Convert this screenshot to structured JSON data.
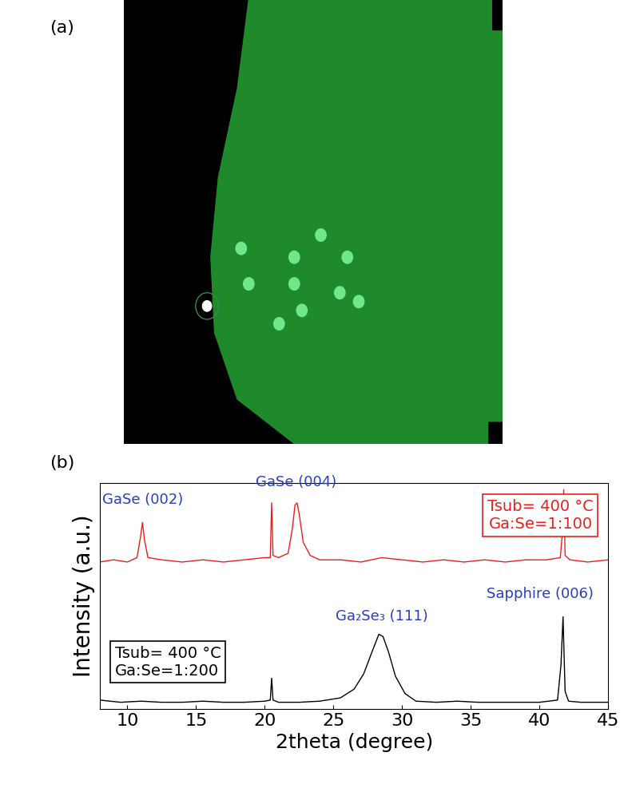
{
  "panel_labels": [
    "(a)",
    "(b)"
  ],
  "chart_data": {
    "type": "line",
    "x_label": "2theta (degree)",
    "y_label": "Intensity (a.u.)",
    "xlim": [
      8,
      45
    ],
    "xticks": [
      10,
      15,
      20,
      25,
      30,
      35,
      40,
      45
    ],
    "ylim": [
      0,
      10.3
    ],
    "yticks": [],
    "tick_labels": "x",
    "series": [
      {
        "name": "Tsub= 400 °C\nGa:Se=1:100",
        "color": "#e8201c",
        "x": [
          8,
          9,
          10,
          10.7,
          10.95,
          11.1,
          11.25,
          11.5,
          12.5,
          14,
          15.5,
          17,
          18.5,
          20,
          20.4,
          20.5,
          20.6,
          21,
          21.7,
          22.0,
          22.2,
          22.35,
          22.5,
          22.8,
          23.3,
          24,
          25.5,
          27,
          28.5,
          30,
          31.5,
          33,
          34.5,
          36,
          37.5,
          39,
          40.5,
          41.5,
          41.65,
          41.75,
          41.85,
          42.2,
          43.5,
          45
        ],
        "values": [
          6.7,
          6.8,
          6.7,
          6.9,
          7.8,
          8.5,
          7.7,
          6.9,
          6.8,
          6.7,
          6.8,
          6.7,
          6.8,
          6.9,
          6.9,
          9.4,
          7.0,
          6.9,
          7.1,
          8.2,
          9.3,
          9.4,
          8.9,
          7.6,
          7.0,
          6.8,
          6.8,
          6.7,
          6.9,
          6.8,
          6.7,
          6.8,
          6.7,
          6.8,
          6.7,
          6.8,
          6.8,
          6.9,
          8.0,
          10.0,
          7.0,
          6.8,
          6.7,
          6.8
        ]
      },
      {
        "name": "Tsub= 400 °C\nGa:Se=1:200",
        "color": "#000000",
        "x": [
          8,
          9.5,
          11,
          12.5,
          14,
          15.5,
          17,
          18.5,
          20,
          20.4,
          20.5,
          20.6,
          21,
          22.5,
          24,
          25.5,
          26.5,
          27.2,
          27.8,
          28.3,
          28.6,
          29.0,
          29.5,
          30.2,
          31,
          32.5,
          34,
          35.5,
          37,
          38.5,
          40,
          41.3,
          41.55,
          41.7,
          41.85,
          42.1,
          43,
          44,
          45
        ],
        "values": [
          0.4,
          0.3,
          0.35,
          0.3,
          0.3,
          0.35,
          0.3,
          0.3,
          0.35,
          0.4,
          1.4,
          0.4,
          0.3,
          0.3,
          0.35,
          0.5,
          0.9,
          1.6,
          2.6,
          3.4,
          3.3,
          2.6,
          1.5,
          0.7,
          0.35,
          0.3,
          0.35,
          0.3,
          0.3,
          0.3,
          0.3,
          0.4,
          2.0,
          4.2,
          0.8,
          0.35,
          0.3,
          0.3,
          0.3
        ]
      }
    ],
    "annotations": [
      {
        "text": "GaSe (002)",
        "x": 11.1,
        "y": 9.2
      },
      {
        "text": "GaSe (004)",
        "x": 22.3,
        "y": 10.0
      },
      {
        "text": "Ga₂Se₃ (111)",
        "x": 28.5,
        "y": 3.9
      },
      {
        "text": "Sapphire (006)",
        "x": 40.0,
        "y": 4.9
      }
    ]
  }
}
